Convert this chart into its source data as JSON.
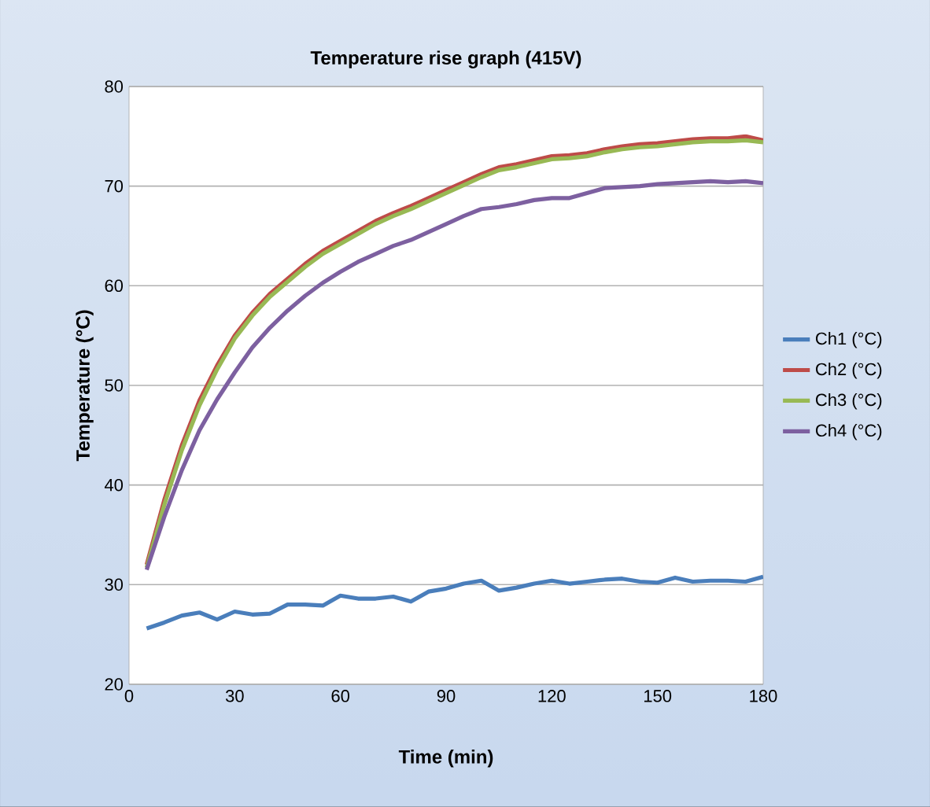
{
  "chart_data": {
    "type": "line",
    "title": "Temperature rise graph (415V)",
    "xlabel": "Time (min)",
    "ylabel": "Temperature  (°C)",
    "x": [
      5,
      10,
      15,
      20,
      25,
      30,
      35,
      40,
      45,
      50,
      55,
      60,
      65,
      70,
      75,
      80,
      85,
      90,
      95,
      100,
      105,
      110,
      115,
      120,
      125,
      130,
      135,
      140,
      145,
      150,
      155,
      160,
      165,
      170,
      175,
      180
    ],
    "series": [
      {
        "name": "Ch1 (°C)",
        "color": "#4a7ebb",
        "values": [
          25.6,
          26.2,
          26.9,
          27.2,
          26.5,
          27.3,
          27.0,
          27.1,
          28.0,
          28.0,
          27.9,
          28.9,
          28.6,
          28.6,
          28.8,
          28.3,
          29.3,
          29.6,
          30.1,
          30.4,
          29.4,
          29.7,
          30.1,
          30.4,
          30.1,
          30.3,
          30.5,
          30.6,
          30.3,
          30.2,
          30.7,
          30.3,
          30.4,
          30.4,
          30.3,
          30.8
        ]
      },
      {
        "name": "Ch2 (°C)",
        "color": "#be4b48",
        "values": [
          32.0,
          38.5,
          44.0,
          48.5,
          52.0,
          55.0,
          57.3,
          59.2,
          60.7,
          62.2,
          63.5,
          64.5,
          65.5,
          66.5,
          67.3,
          68.0,
          68.8,
          69.6,
          70.4,
          71.2,
          71.9,
          72.2,
          72.6,
          73.0,
          73.1,
          73.3,
          73.7,
          74.0,
          74.2,
          74.3,
          74.5,
          74.7,
          74.8,
          74.8,
          75.0,
          74.6
        ]
      },
      {
        "name": "Ch3 (°C)",
        "color": "#98b954",
        "values": [
          31.7,
          38.0,
          43.5,
          48.0,
          51.6,
          54.7,
          57.0,
          58.9,
          60.4,
          61.9,
          63.2,
          64.2,
          65.2,
          66.2,
          67.0,
          67.7,
          68.5,
          69.3,
          70.1,
          70.9,
          71.6,
          71.9,
          72.3,
          72.7,
          72.8,
          73.0,
          73.4,
          73.7,
          73.9,
          74.0,
          74.2,
          74.4,
          74.5,
          74.5,
          74.6,
          74.4
        ]
      },
      {
        "name": "Ch4 (°C)",
        "color": "#7d60a0",
        "values": [
          31.5,
          36.8,
          41.5,
          45.5,
          48.6,
          51.3,
          53.8,
          55.8,
          57.5,
          59.0,
          60.3,
          61.4,
          62.4,
          63.2,
          64.0,
          64.6,
          65.4,
          66.2,
          67.0,
          67.7,
          67.9,
          68.2,
          68.6,
          68.8,
          68.8,
          69.3,
          69.8,
          69.9,
          70.0,
          70.2,
          70.3,
          70.4,
          70.5,
          70.4,
          70.5,
          70.3
        ]
      }
    ],
    "xlim": [
      0,
      180
    ],
    "xticks": [
      0,
      30,
      60,
      90,
      120,
      150,
      180
    ],
    "ylim": [
      20,
      80
    ],
    "yticks": [
      20,
      30,
      40,
      50,
      60,
      70,
      80
    ],
    "grid": "y",
    "legend": "right",
    "marker": "none",
    "line_style": "solid"
  }
}
